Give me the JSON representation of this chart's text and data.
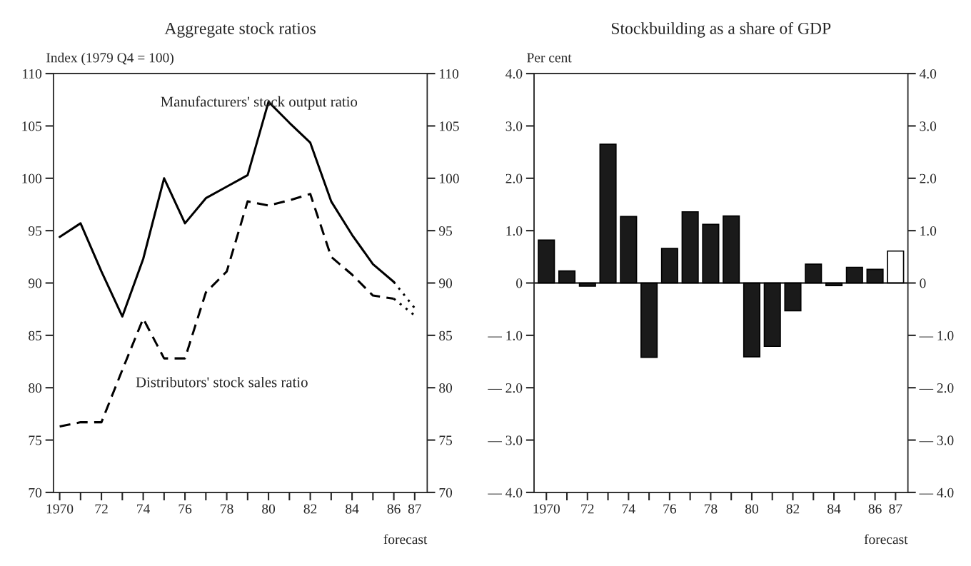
{
  "chart_data": [
    {
      "type": "line",
      "title": "Aggregate stock ratios",
      "ylabel": "Index (1979 Q4 = 100)",
      "x": [
        1970,
        1971,
        1972,
        1973,
        1974,
        1975,
        1976,
        1977,
        1978,
        1979,
        1980,
        1981,
        1982,
        1983,
        1984,
        1985,
        1986,
        1987
      ],
      "series": [
        {
          "name": "Manufacturers' stock output ratio",
          "color": "#000000",
          "line_style": "solid",
          "values": [
            94.4,
            95.7,
            91.1,
            86.8,
            92.3,
            100,
            95.7,
            98.1,
            99.2,
            100.3,
            107.3,
            105.3,
            103.4,
            97.8,
            94.6,
            91.8,
            90.1,
            null
          ]
        },
        {
          "name": "Distributors' stock sales ratio",
          "color": "#000000",
          "line_style": "dashed",
          "values": [
            76.3,
            76.7,
            76.7,
            81.7,
            86.6,
            82.8,
            82.8,
            89.1,
            91.1,
            97.8,
            97.4,
            97.9,
            98.5,
            92.5,
            90.8,
            88.8,
            88.5,
            null
          ]
        },
        {
          "color": "#000000",
          "line_style": "dotted",
          "values": [
            null,
            null,
            null,
            null,
            null,
            null,
            null,
            null,
            null,
            null,
            null,
            null,
            null,
            null,
            null,
            null,
            90.1,
            87.6
          ]
        },
        {
          "color": "#000000",
          "line_style": "dotted",
          "values": [
            null,
            null,
            null,
            null,
            null,
            null,
            null,
            null,
            null,
            null,
            null,
            null,
            null,
            null,
            null,
            null,
            88.5,
            86.9
          ]
        }
      ],
      "xlim": [
        1969.7,
        1987.6
      ],
      "xticks": [
        {
          "value": 1970,
          "label": "1970"
        },
        {
          "value": 1971,
          "label": null
        },
        {
          "value": 1972,
          "label": "72"
        },
        {
          "value": 1973,
          "label": null
        },
        {
          "value": 1974,
          "label": "74"
        },
        {
          "value": 1975,
          "label": null
        },
        {
          "value": 1976,
          "label": "76"
        },
        {
          "value": 1977,
          "label": null
        },
        {
          "value": 1978,
          "label": "78"
        },
        {
          "value": 1979,
          "label": null
        },
        {
          "value": 1980,
          "label": "80"
        },
        {
          "value": 1981,
          "label": null
        },
        {
          "value": 1982,
          "label": "82"
        },
        {
          "value": 1983,
          "label": null
        },
        {
          "value": 1984,
          "label": "84"
        },
        {
          "value": 1985,
          "label": null
        },
        {
          "value": 1986,
          "label": "86"
        },
        {
          "value": 1987,
          "label": "87"
        }
      ],
      "ylim": [
        70,
        110
      ],
      "yticks": [
        70,
        75,
        80,
        85,
        90,
        95,
        100,
        105,
        110
      ],
      "y2lim": [
        70,
        110
      ],
      "y2ticks": [
        70,
        75,
        80,
        85,
        90,
        95,
        100,
        105,
        110
      ],
      "annotations": [
        "forecast"
      ]
    },
    {
      "type": "bar",
      "title": "Stockbuilding as a share of GDP",
      "ylabel": "Per cent",
      "categories": [
        "1970",
        null,
        "72",
        null,
        "74",
        null,
        "76",
        null,
        "78",
        null,
        "80",
        null,
        "82",
        null,
        "84",
        null,
        "86",
        "87"
      ],
      "values": [
        0.82,
        0.23,
        -0.06,
        2.65,
        1.27,
        -1.42,
        0.66,
        1.36,
        1.12,
        1.28,
        -1.41,
        -1.21,
        -0.53,
        0.36,
        -0.05,
        0.3,
        0.26,
        0.61
      ],
      "colors": [
        "#1a1a1a",
        "#1a1a1a",
        "#1a1a1a",
        "#1a1a1a",
        "#1a1a1a",
        "#1a1a1a",
        "#1a1a1a",
        "#1a1a1a",
        "#1a1a1a",
        "#1a1a1a",
        "#1a1a1a",
        "#1a1a1a",
        "#1a1a1a",
        "#1a1a1a",
        "#1a1a1a",
        "#1a1a1a",
        "#1a1a1a",
        "#ffffff"
      ],
      "ylim": [
        -4,
        4
      ],
      "yticks": [
        {
          "value": -4,
          "label": "— 4.0"
        },
        {
          "value": -3,
          "label": "— 3.0"
        },
        {
          "value": -2,
          "label": "— 2.0"
        },
        {
          "value": -1,
          "label": "— 1.0"
        },
        {
          "value": 0,
          "label": "0"
        },
        {
          "value": 1,
          "label": "1.0"
        },
        {
          "value": 2,
          "label": "2.0"
        },
        {
          "value": 3,
          "label": "3.0"
        },
        {
          "value": 4,
          "label": "4.0"
        }
      ],
      "y2lim": [
        -4,
        4
      ],
      "y2ticks": [
        {
          "value": -4,
          "label": "— 4.0"
        },
        {
          "value": -3,
          "label": "— 3.0"
        },
        {
          "value": -2,
          "label": "— 2.0"
        },
        {
          "value": -1,
          "label": "— 1.0"
        },
        {
          "value": 0,
          "label": "0"
        },
        {
          "value": 1,
          "label": "1.0"
        },
        {
          "value": 2,
          "label": "2.0"
        },
        {
          "value": 3,
          "label": "3.0"
        },
        {
          "value": 4,
          "label": "4.0"
        }
      ],
      "annotations": [
        "forecast"
      ]
    }
  ]
}
